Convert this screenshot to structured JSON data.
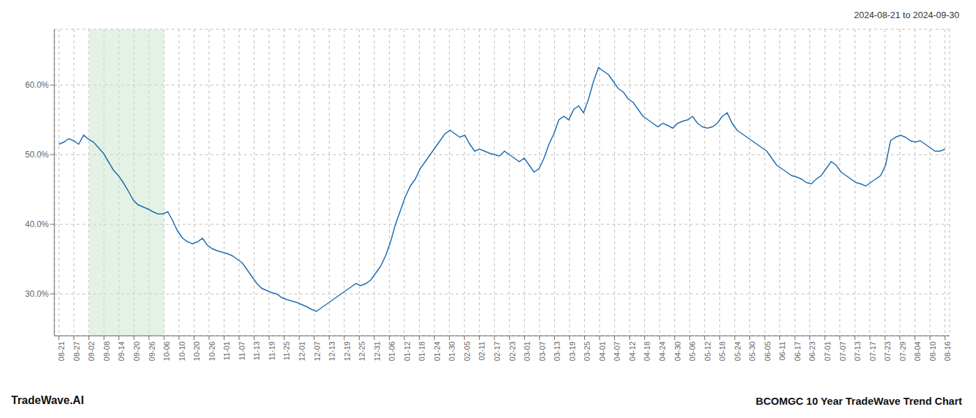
{
  "chart_data": {
    "type": "line",
    "title": "BCOMGC 10 Year TradeWave Trend Chart",
    "subtitle": "2024-08-21 to 2024-09-30",
    "annotations": [
      "TradeWave.AI"
    ],
    "color": "#1a6ab0",
    "grid": true,
    "shaded_range": [
      2,
      7
    ],
    "shade_color": "#c8e6c9",
    "xlim": [
      -0.3,
      59.3
    ],
    "xticks": [
      {
        "value": 0,
        "label": "08-21"
      },
      {
        "value": 1,
        "label": "08-27"
      },
      {
        "value": 2,
        "label": "09-02"
      },
      {
        "value": 3,
        "label": "09-08"
      },
      {
        "value": 4,
        "label": "09-14"
      },
      {
        "value": 5,
        "label": "09-20"
      },
      {
        "value": 6,
        "label": "09-26"
      },
      {
        "value": 7,
        "label": "10-06"
      },
      {
        "value": 8,
        "label": "10-10"
      },
      {
        "value": 9,
        "label": "10-20"
      },
      {
        "value": 10,
        "label": "10-26"
      },
      {
        "value": 11,
        "label": "11-01"
      },
      {
        "value": 12,
        "label": "11-07"
      },
      {
        "value": 13,
        "label": "11-13"
      },
      {
        "value": 14,
        "label": "11-19"
      },
      {
        "value": 15,
        "label": "11-25"
      },
      {
        "value": 16,
        "label": "12-01"
      },
      {
        "value": 17,
        "label": "12-07"
      },
      {
        "value": 18,
        "label": "12-13"
      },
      {
        "value": 19,
        "label": "12-19"
      },
      {
        "value": 20,
        "label": "12-25"
      },
      {
        "value": 21,
        "label": "12-31"
      },
      {
        "value": 22,
        "label": "01-06"
      },
      {
        "value": 23,
        "label": "01-12"
      },
      {
        "value": 24,
        "label": "01-18"
      },
      {
        "value": 25,
        "label": "01-24"
      },
      {
        "value": 26,
        "label": "01-30"
      },
      {
        "value": 27,
        "label": "02-05"
      },
      {
        "value": 28,
        "label": "02-11"
      },
      {
        "value": 29,
        "label": "02-17"
      },
      {
        "value": 30,
        "label": "02-23"
      },
      {
        "value": 31,
        "label": "03-01"
      },
      {
        "value": 32,
        "label": "03-07"
      },
      {
        "value": 33,
        "label": "03-13"
      },
      {
        "value": 34,
        "label": "03-19"
      },
      {
        "value": 35,
        "label": "03-25"
      },
      {
        "value": 36,
        "label": "04-01"
      },
      {
        "value": 37,
        "label": "04-07"
      },
      {
        "value": 38,
        "label": "04-12"
      },
      {
        "value": 39,
        "label": "04-18"
      },
      {
        "value": 40,
        "label": "04-24"
      },
      {
        "value": 41,
        "label": "04-30"
      },
      {
        "value": 42,
        "label": "05-06"
      },
      {
        "value": 43,
        "label": "05-12"
      },
      {
        "value": 44,
        "label": "05-18"
      },
      {
        "value": 45,
        "label": "05-24"
      },
      {
        "value": 46,
        "label": "05-30"
      },
      {
        "value": 47,
        "label": "06-05"
      },
      {
        "value": 48,
        "label": "06-11"
      },
      {
        "value": 49,
        "label": "06-17"
      },
      {
        "value": 50,
        "label": "06-23"
      },
      {
        "value": 51,
        "label": "07-01"
      },
      {
        "value": 52,
        "label": "07-07"
      },
      {
        "value": 53,
        "label": "07-13"
      },
      {
        "value": 54,
        "label": "07-17"
      },
      {
        "value": 55,
        "label": "07-23"
      },
      {
        "value": 56,
        "label": "07-29"
      },
      {
        "value": 57,
        "label": "08-04"
      },
      {
        "value": 58,
        "label": "08-10"
      },
      {
        "value": 59,
        "label": "08-16"
      }
    ],
    "ylim": [
      24.0,
      68.0
    ],
    "yticks": [
      {
        "value": 30.0,
        "label": "30.0%"
      },
      {
        "value": 40.0,
        "label": "40.0%"
      },
      {
        "value": 50.0,
        "label": "50.0%"
      },
      {
        "value": 60.0,
        "label": "60.0%"
      }
    ],
    "x": [
      0,
      0.33,
      0.659,
      0.989,
      1.318,
      1.648,
      1.978,
      2.307,
      2.637,
      2.966,
      3.296,
      3.626,
      3.955,
      4.285,
      4.615,
      4.944,
      5.274,
      5.603,
      5.933,
      6.263,
      6.592,
      6.922,
      7.251,
      7.581,
      7.911,
      8.24,
      8.57,
      8.899,
      9.229,
      9.559,
      9.888,
      10.218,
      10.547,
      10.877,
      11.207,
      11.536,
      11.866,
      12.196,
      12.525,
      12.855,
      13.184,
      13.514,
      13.844,
      14.173,
      14.503,
      14.832,
      15.162,
      15.492,
      15.821,
      16.151,
      16.48,
      16.81,
      17.14,
      17.469,
      17.799,
      18.128,
      18.458,
      18.788,
      19.117,
      19.447,
      19.777,
      20.106,
      20.436,
      20.765,
      21.095,
      21.425,
      21.754,
      22.084,
      22.413,
      22.743,
      23.073,
      23.402,
      23.732,
      24.061,
      24.391,
      24.721,
      25.05,
      25.38,
      25.709,
      26.039,
      26.369,
      26.698,
      27.028,
      27.358,
      27.687,
      28.017,
      28.346,
      28.676,
      29.006,
      29.335,
      29.665,
      29.994,
      30.324,
      30.654,
      30.983,
      31.313,
      31.642,
      31.972,
      32.302,
      32.631,
      32.961,
      33.291,
      33.62,
      33.95,
      34.279,
      34.609,
      34.939,
      35.268,
      35.598,
      35.927,
      36.257,
      36.587,
      36.916,
      37.246,
      37.575,
      37.905,
      38.235,
      38.564,
      38.894,
      39.223,
      39.553,
      39.883,
      40.212,
      40.542,
      40.872,
      41.201,
      41.531,
      41.86,
      42.19,
      42.52,
      42.849,
      43.179,
      43.508,
      43.838,
      44.168,
      44.497,
      44.827,
      45.156,
      45.486,
      45.816,
      46.145,
      46.475,
      46.804,
      47.134,
      47.464,
      47.793,
      48.123,
      48.453,
      48.782,
      49.112,
      49.441,
      49.771,
      50.101,
      50.43,
      50.76,
      51.089,
      51.419,
      51.749,
      52.078,
      52.408,
      52.737,
      53.067,
      53.397,
      53.726,
      54.056,
      54.385,
      54.715,
      55.045,
      55.374,
      55.704,
      56.034,
      56.363,
      56.693,
      57.022,
      57.352,
      57.682,
      58.011,
      58.341,
      58.67,
      59
    ],
    "values": [
      51.5,
      51.8,
      52.3,
      52.0,
      51.5,
      52.8,
      52.2,
      51.8,
      51.0,
      50.2,
      49.0,
      47.8,
      47.0,
      46.0,
      44.8,
      43.5,
      42.8,
      42.5,
      42.2,
      41.8,
      41.5,
      41.5,
      41.8,
      40.5,
      39.0,
      38.0,
      37.5,
      37.2,
      37.5,
      38.0,
      37.0,
      36.5,
      36.2,
      36.0,
      35.8,
      35.5,
      35.0,
      34.5,
      33.5,
      32.5,
      31.5,
      30.8,
      30.5,
      30.2,
      30.0,
      29.5,
      29.2,
      29.0,
      28.8,
      28.5,
      28.2,
      27.8,
      27.5,
      28.0,
      28.5,
      29.0,
      29.5,
      30.0,
      30.5,
      31.0,
      31.5,
      31.2,
      31.5,
      32.0,
      33.0,
      34.0,
      35.5,
      37.5,
      40.0,
      42.0,
      44.0,
      45.5,
      46.5,
      48.0,
      49.0,
      50.0,
      51.0,
      52.0,
      53.0,
      53.5,
      53.0,
      52.5,
      52.8,
      51.5,
      50.5,
      50.8,
      50.5,
      50.2,
      50.0,
      49.8,
      50.5,
      50.0,
      49.5,
      49.0,
      49.5,
      48.5,
      47.5,
      48.0,
      49.5,
      51.5,
      53.0,
      55.0,
      55.5,
      55.0,
      56.5,
      57.0,
      56.0,
      58.0,
      60.5,
      62.5,
      62.0,
      61.5,
      60.5,
      59.5,
      59.0,
      58.0,
      57.5,
      56.5,
      55.5,
      55.0,
      54.5,
      54.0,
      54.5,
      54.2,
      53.8,
      54.5,
      54.8,
      55.0,
      55.5,
      54.5,
      54.0,
      53.8,
      54.0,
      54.5,
      55.5,
      56.0,
      54.5,
      53.5,
      53.0,
      52.5,
      52.0,
      51.5,
      51.0,
      50.5,
      49.5,
      48.5,
      48.0,
      47.5,
      47.0,
      46.8,
      46.5,
      46.0,
      45.8,
      46.5,
      47.0,
      48.0,
      49.0,
      48.5,
      47.5,
      47.0,
      46.5,
      46.0,
      45.8,
      45.5,
      46.0,
      46.5,
      47.0,
      48.5,
      52.0,
      52.5,
      52.8,
      52.5,
      52.0,
      51.8,
      52.0,
      51.5,
      51.0,
      50.5,
      50.5,
      50.8
    ]
  }
}
